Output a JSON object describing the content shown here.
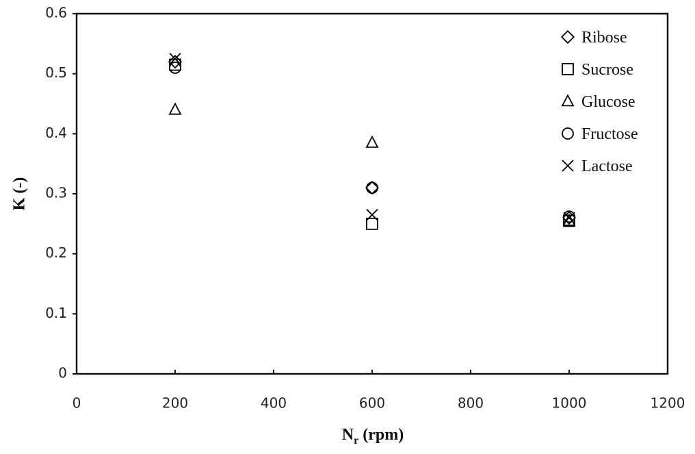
{
  "chart_data": {
    "type": "scatter",
    "ylabel": "K (-)",
    "xlabel": {
      "symbol": "N",
      "subscript": "r",
      "unit": "(rpm)"
    },
    "x": [
      200,
      600,
      1000
    ],
    "series": [
      {
        "name": "Ribose",
        "color": "#000000",
        "marker": "diamond",
        "values": [
          0.52,
          0.31,
          0.26
        ]
      },
      {
        "name": "Sucrose",
        "color": "#000000",
        "marker": "square",
        "values": [
          0.515,
          0.25,
          0.255
        ]
      },
      {
        "name": "Glucose",
        "color": "#000000",
        "marker": "triangle",
        "values": [
          0.44,
          0.385,
          0.255
        ]
      },
      {
        "name": "Fructose",
        "color": "#000000",
        "marker": "circle",
        "values": [
          0.51,
          0.31,
          0.262
        ]
      },
      {
        "name": "Lactose",
        "color": "#000000",
        "marker": "cross",
        "values": [
          0.525,
          0.265,
          0.26
        ]
      }
    ],
    "xlim": [
      0,
      1200
    ],
    "xticks": [
      0,
      200,
      400,
      600,
      800,
      1000,
      1200
    ],
    "ylim": [
      0,
      0.6
    ],
    "yticks": [
      0,
      0.1,
      0.2,
      0.3,
      0.4,
      0.5,
      0.6
    ],
    "grid": false,
    "legend": "top-right"
  }
}
